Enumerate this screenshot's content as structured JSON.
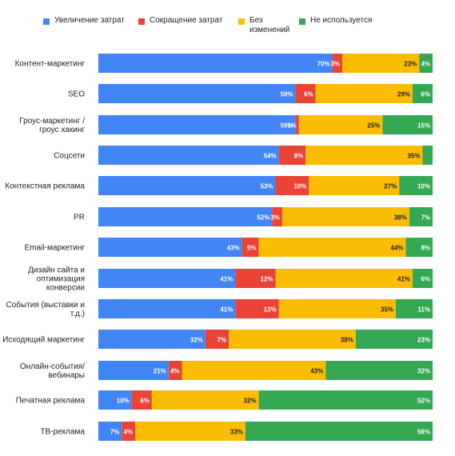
{
  "chart_data": {
    "type": "bar",
    "stacked": true,
    "orientation": "horizontal",
    "percent_labels": true,
    "colors": [
      "#4285F4",
      "#EA4335",
      "#FBBC04",
      "#34A853"
    ],
    "categories": [
      "Контент-маркетинг",
      "SEO",
      "Гроус-маркетинг / гроус хакинг",
      "Соцсети",
      "Контекстная реклама",
      "PR",
      "Email-маркетинг",
      "Дизайн сайта и оптимизация конверсии",
      "События (выставки и т.д.)",
      "Исходящий маркетинг",
      "Онлайн-события/ вебинары",
      "Печатная реклама",
      "ТВ-реклама"
    ],
    "series": [
      {
        "name": "Увеличение затрат",
        "values": [
          70,
          59,
          59,
          54,
          53,
          52,
          43,
          41,
          41,
          32,
          21,
          10,
          7
        ]
      },
      {
        "name": "Сокращение затрат",
        "values": [
          3,
          6,
          1,
          8,
          10,
          3,
          5,
          12,
          13,
          7,
          4,
          6,
          4
        ]
      },
      {
        "name": "Без изменений",
        "values": [
          23,
          29,
          25,
          35,
          27,
          38,
          44,
          41,
          35,
          38,
          43,
          32,
          33
        ]
      },
      {
        "name": "Не используется",
        "values": [
          4,
          6,
          15,
          3,
          10,
          7,
          8,
          6,
          11,
          23,
          32,
          52,
          56
        ]
      }
    ],
    "hidden_labels": {
      "3": [
        3
      ]
    },
    "ylim": [
      0,
      100
    ],
    "legend": "top"
  }
}
